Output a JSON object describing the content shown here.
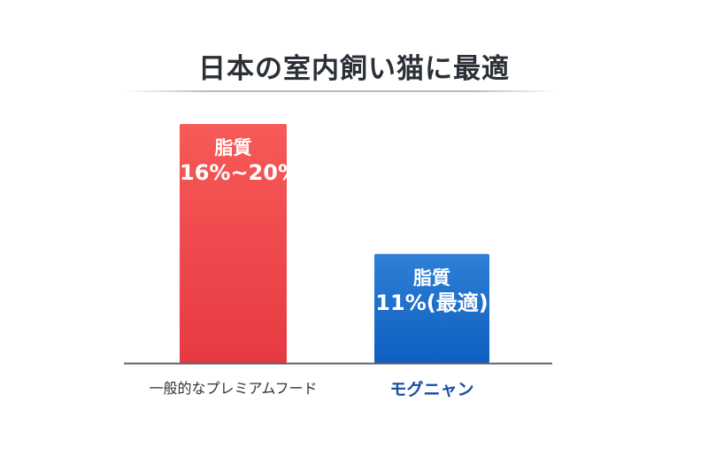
{
  "chart_data": {
    "type": "bar",
    "title": "日本の室内飼い猫に最適",
    "categories": [
      "一般的なプレミアムフード",
      "モグニャン"
    ],
    "values": [
      20,
      11
    ],
    "value_labels": [
      {
        "line1": "脂質",
        "line2": "16%~20%"
      },
      {
        "line1": "脂質",
        "line2": "11%(最適)"
      }
    ],
    "colors": [
      "#ec4548",
      "#1e6bc8"
    ],
    "category_label_colors": [
      "#333333",
      "#1a4fa0"
    ],
    "ylim": [
      0,
      20
    ],
    "grid": false,
    "legend": "none",
    "xlabel": "",
    "ylabel": ""
  }
}
